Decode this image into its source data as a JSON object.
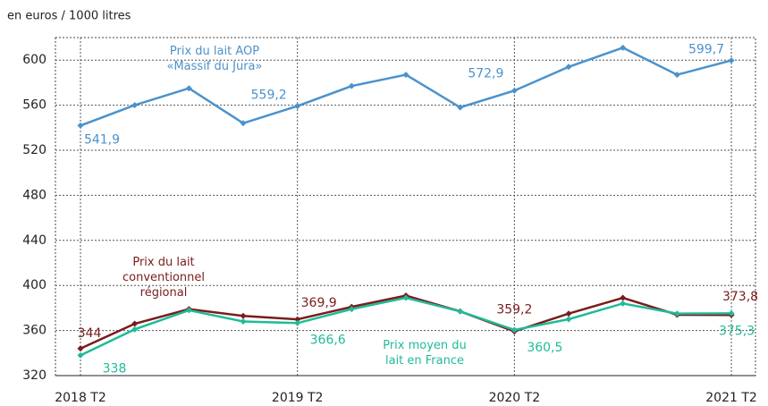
{
  "chart_data": {
    "type": "line",
    "y_axis_label": "en euros / 1000 litres",
    "categories": [
      "2018 T2",
      null,
      null,
      null,
      "2019 T2",
      null,
      null,
      null,
      "2020 T2",
      null,
      null,
      null,
      "2021 T2"
    ],
    "ylim": [
      320,
      620
    ],
    "yticks": [
      320,
      360,
      400,
      440,
      480,
      520,
      560,
      600
    ],
    "grid": true,
    "series": [
      {
        "name": "Prix du lait AOP\n«Massif du Jura»",
        "color": "#4a92cc",
        "values": [
          541.9,
          560,
          575,
          544,
          559.2,
          577,
          587,
          558,
          572.9,
          594,
          611,
          587,
          599.7
        ],
        "value_labels": [
          "541,9",
          null,
          null,
          null,
          "559,2",
          null,
          null,
          null,
          "572,9",
          null,
          null,
          null,
          "599,7"
        ]
      },
      {
        "name": "Prix du lait\nconventionnel\nrégional",
        "color": "#7a1c1c",
        "values": [
          344,
          366,
          379,
          373,
          369.9,
          381,
          391,
          377,
          359.2,
          375,
          389,
          374,
          373.8
        ],
        "value_labels": [
          "344",
          null,
          null,
          null,
          "369,9",
          null,
          null,
          null,
          "359,2",
          null,
          null,
          null,
          "373,8"
        ]
      },
      {
        "name": "Prix moyen du\nlait en France",
        "color": "#1fbb98",
        "values": [
          338,
          361,
          378,
          368,
          366.6,
          379,
          389,
          377,
          360.5,
          370,
          384,
          375,
          375.3
        ],
        "value_labels": [
          "338",
          null,
          null,
          null,
          "366,6",
          null,
          null,
          null,
          "360,5",
          null,
          null,
          null,
          "375,3"
        ]
      }
    ]
  }
}
